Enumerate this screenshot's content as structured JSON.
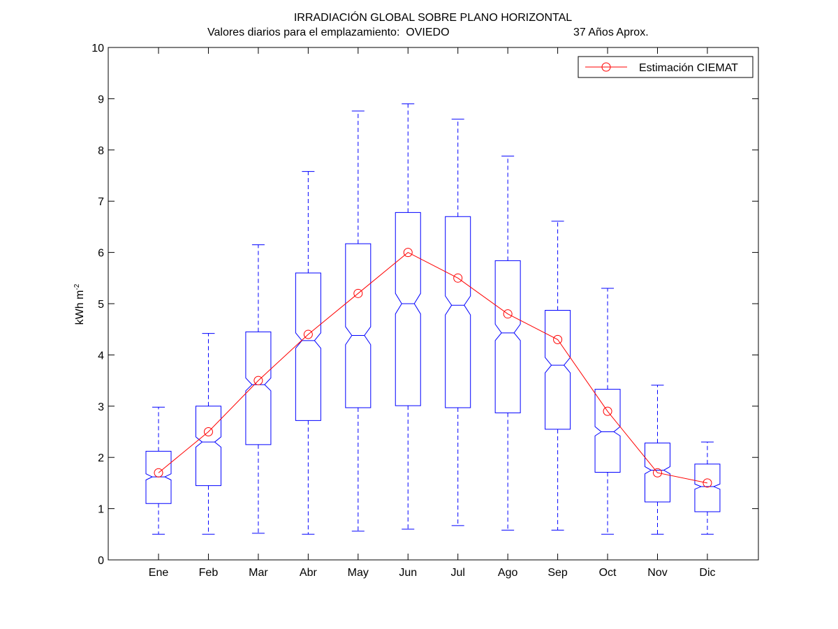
{
  "chart_data": {
    "type": "boxplot",
    "title": "IRRADIACIÓN GLOBAL SOBRE PLANO HORIZONTAL",
    "subtitle_left": "Valores diarios para el emplazamiento:  OVIEDO",
    "subtitle_right": "37 Años Aprox.",
    "ylabel": "kWh m",
    "ylabel_exponent": "-2",
    "xlabel": "",
    "ylim": [
      0,
      10
    ],
    "yticks": [
      "0",
      "1",
      "2",
      "3",
      "4",
      "5",
      "6",
      "7",
      "8",
      "9",
      "10"
    ],
    "grid": false,
    "legend_position": "top-right",
    "categories": [
      "Ene",
      "Feb",
      "Mar",
      "Abr",
      "May",
      "Jun",
      "Jul",
      "Ago",
      "Sep",
      "Oct",
      "Nov",
      "Dic"
    ],
    "boxes": [
      {
        "whisker_low": 0.5,
        "q1": 1.1,
        "median": 1.62,
        "q3": 2.12,
        "whisker_high": 2.98,
        "notch_low": 1.56,
        "notch_high": 1.68
      },
      {
        "whisker_low": 0.5,
        "q1": 1.45,
        "median": 2.3,
        "q3": 3.0,
        "whisker_high": 4.42,
        "notch_low": 2.2,
        "notch_high": 2.4
      },
      {
        "whisker_low": 0.52,
        "q1": 2.25,
        "median": 3.42,
        "q3": 4.45,
        "whisker_high": 6.15,
        "notch_low": 3.3,
        "notch_high": 3.55
      },
      {
        "whisker_low": 0.5,
        "q1": 2.72,
        "median": 4.28,
        "q3": 5.6,
        "whisker_high": 7.58,
        "notch_low": 4.13,
        "notch_high": 4.43
      },
      {
        "whisker_low": 0.56,
        "q1": 2.97,
        "median": 4.38,
        "q3": 6.17,
        "whisker_high": 8.76,
        "notch_low": 4.2,
        "notch_high": 4.55
      },
      {
        "whisker_low": 0.6,
        "q1": 3.01,
        "median": 5.0,
        "q3": 6.78,
        "whisker_high": 8.9,
        "notch_low": 4.8,
        "notch_high": 5.2
      },
      {
        "whisker_low": 0.67,
        "q1": 2.97,
        "median": 4.97,
        "q3": 6.7,
        "whisker_high": 8.6,
        "notch_low": 4.78,
        "notch_high": 5.15
      },
      {
        "whisker_low": 0.58,
        "q1": 2.87,
        "median": 4.43,
        "q3": 5.84,
        "whisker_high": 7.88,
        "notch_low": 4.28,
        "notch_high": 4.6
      },
      {
        "whisker_low": 0.58,
        "q1": 2.55,
        "median": 3.8,
        "q3": 4.87,
        "whisker_high": 6.61,
        "notch_low": 3.65,
        "notch_high": 3.95
      },
      {
        "whisker_low": 0.5,
        "q1": 1.71,
        "median": 2.5,
        "q3": 3.33,
        "whisker_high": 5.3,
        "notch_low": 2.42,
        "notch_high": 2.6
      },
      {
        "whisker_low": 0.5,
        "q1": 1.13,
        "median": 1.75,
        "q3": 2.28,
        "whisker_high": 3.41,
        "notch_low": 1.68,
        "notch_high": 1.82
      },
      {
        "whisker_low": 0.5,
        "q1": 0.94,
        "median": 1.43,
        "q3": 1.87,
        "whisker_high": 2.3,
        "notch_low": 1.38,
        "notch_high": 1.48
      }
    ],
    "series": [
      {
        "name": "Estimación CIEMAT",
        "color": "#ff0000",
        "marker": "circle",
        "values": [
          1.7,
          2.5,
          3.5,
          4.4,
          5.2,
          6.0,
          5.5,
          4.8,
          4.3,
          2.9,
          1.7,
          1.5
        ]
      }
    ],
    "box_color": "#0000ff"
  }
}
